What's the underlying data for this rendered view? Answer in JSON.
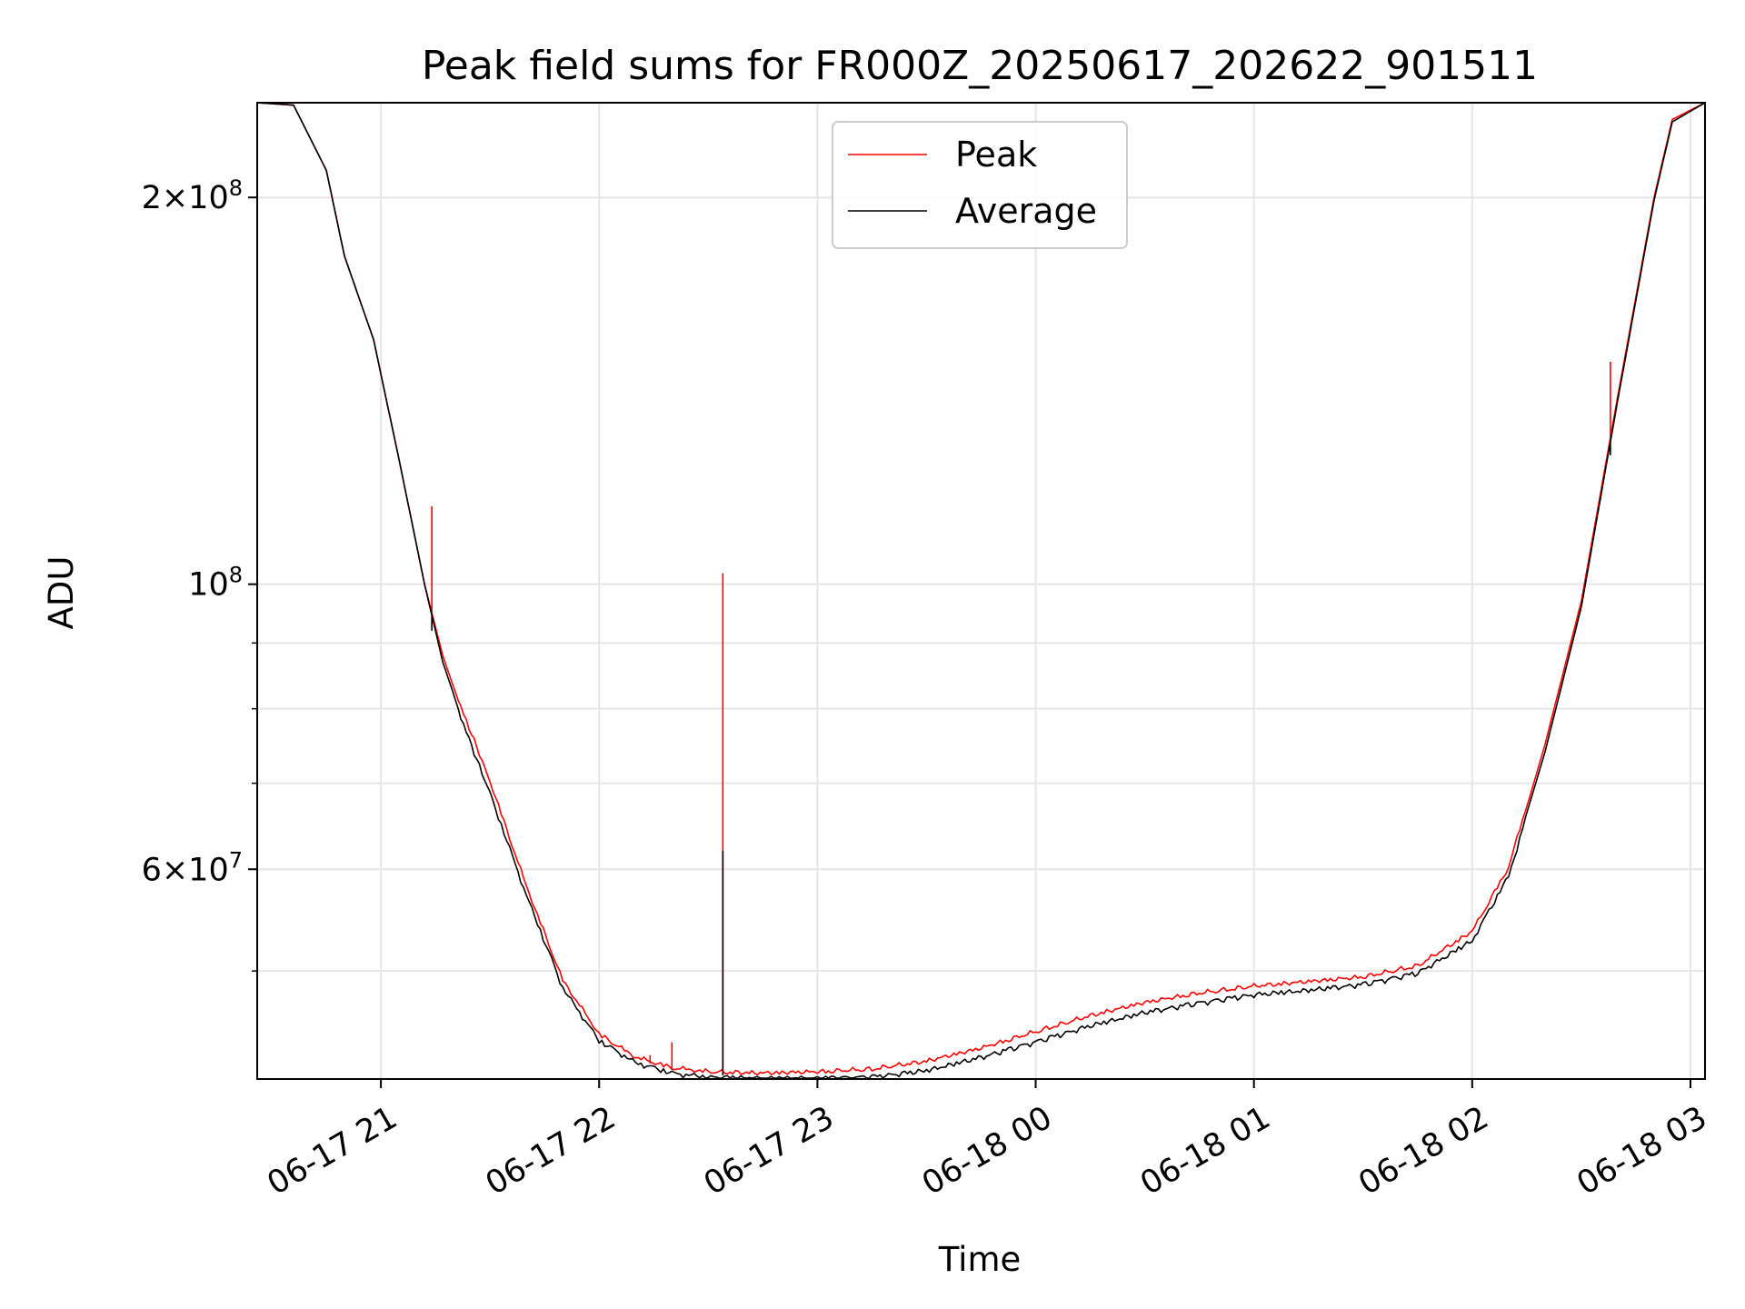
{
  "chart_data": {
    "type": "line",
    "title": "Peak field sums for FR000Z_20250617_202622_901511",
    "xlabel": "Time",
    "ylabel": "ADU",
    "yscale": "log",
    "xlim": [
      "2025-06-17 20:26",
      "2025-06-18 03:04"
    ],
    "ylim": [
      41200000,
      237000000
    ],
    "x_ticks": [
      "06-17 21",
      "06-17 22",
      "06-17 23",
      "06-18 00",
      "06-18 01",
      "06-18 02",
      "06-18 03"
    ],
    "y_tick_labels": [
      {
        "value": 200000000,
        "mantissa": "2",
        "times": "×",
        "base": "10",
        "exp": "8"
      },
      {
        "value": 100000000,
        "mantissa": "",
        "times": "",
        "base": "10",
        "exp": "8"
      },
      {
        "value": 60000000,
        "mantissa": "6",
        "times": "×",
        "base": "10",
        "exp": "7"
      }
    ],
    "y_minor_ticks": [
      50000000,
      70000000,
      80000000,
      90000000
    ],
    "grid": true,
    "legend_position": "top-center",
    "series": [
      {
        "name": "Peak",
        "color": "#ff0000",
        "points": [
          [
            "2025-06-17 20:26",
            237000000
          ],
          [
            "2025-06-17 20:36",
            236000000
          ],
          [
            "2025-06-17 20:45",
            210000000
          ],
          [
            "2025-06-17 20:50",
            180000000
          ],
          [
            "2025-06-17 20:58",
            155000000
          ],
          [
            "2025-06-17 21:05",
            125000000
          ],
          [
            "2025-06-17 21:12",
            100000000
          ],
          [
            "2025-06-17 21:17",
            88000000
          ],
          [
            "2025-06-17 21:22",
            80000000
          ],
          [
            "2025-06-17 21:30",
            70000000
          ],
          [
            "2025-06-17 21:40",
            58000000
          ],
          [
            "2025-06-17 21:50",
            49000000
          ],
          [
            "2025-06-17 22:00",
            44500000
          ],
          [
            "2025-06-17 22:10",
            42700000
          ],
          [
            "2025-06-17 22:20",
            41900000
          ],
          [
            "2025-06-17 22:30",
            41600000
          ],
          [
            "2025-06-17 22:45",
            41500000
          ],
          [
            "2025-06-17 23:00",
            41600000
          ],
          [
            "2025-06-17 23:15",
            41800000
          ],
          [
            "2025-06-17 23:30",
            42400000
          ],
          [
            "2025-06-17 23:45",
            43400000
          ],
          [
            "2025-06-18 00:00",
            44700000
          ],
          [
            "2025-06-18 00:15",
            46000000
          ],
          [
            "2025-06-18 00:30",
            47100000
          ],
          [
            "2025-06-18 00:45",
            47900000
          ],
          [
            "2025-06-18 01:00",
            48500000
          ],
          [
            "2025-06-18 01:15",
            48900000
          ],
          [
            "2025-06-18 01:30",
            49300000
          ],
          [
            "2025-06-18 01:45",
            50300000
          ],
          [
            "2025-06-18 02:00",
            53500000
          ],
          [
            "2025-06-18 02:10",
            60000000
          ],
          [
            "2025-06-18 02:20",
            75000000
          ],
          [
            "2025-06-18 02:30",
            97000000
          ],
          [
            "2025-06-18 02:40",
            140000000
          ],
          [
            "2025-06-18 02:50",
            200000000
          ],
          [
            "2025-06-18 02:55",
            230000000
          ],
          [
            "2025-06-18 03:04",
            237000000
          ]
        ],
        "spikes": [
          [
            "2025-06-17 21:14",
            115000000
          ],
          [
            "2025-06-17 22:14",
            43000000
          ],
          [
            "2025-06-17 22:20",
            44000000
          ],
          [
            "2025-06-17 22:34",
            102000000
          ],
          [
            "2025-06-18 02:38",
            149000000
          ]
        ]
      },
      {
        "name": "Average",
        "color": "#000000",
        "points": [
          [
            "2025-06-17 20:26",
            237000000
          ],
          [
            "2025-06-17 20:36",
            236000000
          ],
          [
            "2025-06-17 20:45",
            210000000
          ],
          [
            "2025-06-17 20:50",
            180000000
          ],
          [
            "2025-06-17 20:58",
            155000000
          ],
          [
            "2025-06-17 21:05",
            125000000
          ],
          [
            "2025-06-17 21:12",
            100000000
          ],
          [
            "2025-06-17 21:17",
            87000000
          ],
          [
            "2025-06-17 21:22",
            79000000
          ],
          [
            "2025-06-17 21:30",
            69000000
          ],
          [
            "2025-06-17 21:40",
            57500000
          ],
          [
            "2025-06-17 21:50",
            48700000
          ],
          [
            "2025-06-17 22:00",
            44300000
          ],
          [
            "2025-06-17 22:10",
            42600000
          ],
          [
            "2025-06-17 22:20",
            41800000
          ],
          [
            "2025-06-17 22:30",
            41500000
          ],
          [
            "2025-06-17 22:45",
            41400000
          ],
          [
            "2025-06-17 23:00",
            41400000
          ],
          [
            "2025-06-17 23:15",
            41500000
          ],
          [
            "2025-06-17 23:30",
            42000000
          ],
          [
            "2025-06-17 23:45",
            43000000
          ],
          [
            "2025-06-18 00:00",
            44200000
          ],
          [
            "2025-06-18 00:15",
            45500000
          ],
          [
            "2025-06-18 00:30",
            46600000
          ],
          [
            "2025-06-18 00:45",
            47400000
          ],
          [
            "2025-06-18 01:00",
            48100000
          ],
          [
            "2025-06-18 01:15",
            48500000
          ],
          [
            "2025-06-18 01:30",
            49000000
          ],
          [
            "2025-06-18 01:45",
            50000000
          ],
          [
            "2025-06-18 02:00",
            53000000
          ],
          [
            "2025-06-18 02:10",
            59500000
          ],
          [
            "2025-06-18 02:20",
            74000000
          ],
          [
            "2025-06-18 02:30",
            96000000
          ],
          [
            "2025-06-18 02:40",
            139000000
          ],
          [
            "2025-06-18 02:50",
            199000000
          ],
          [
            "2025-06-18 02:55",
            229000000
          ],
          [
            "2025-06-18 03:04",
            237000000
          ]
        ],
        "spikes": [
          [
            "2025-06-17 21:14",
            92000000
          ],
          [
            "2025-06-17 22:34",
            62000000
          ],
          [
            "2025-06-18 02:38",
            126000000
          ]
        ]
      }
    ]
  }
}
